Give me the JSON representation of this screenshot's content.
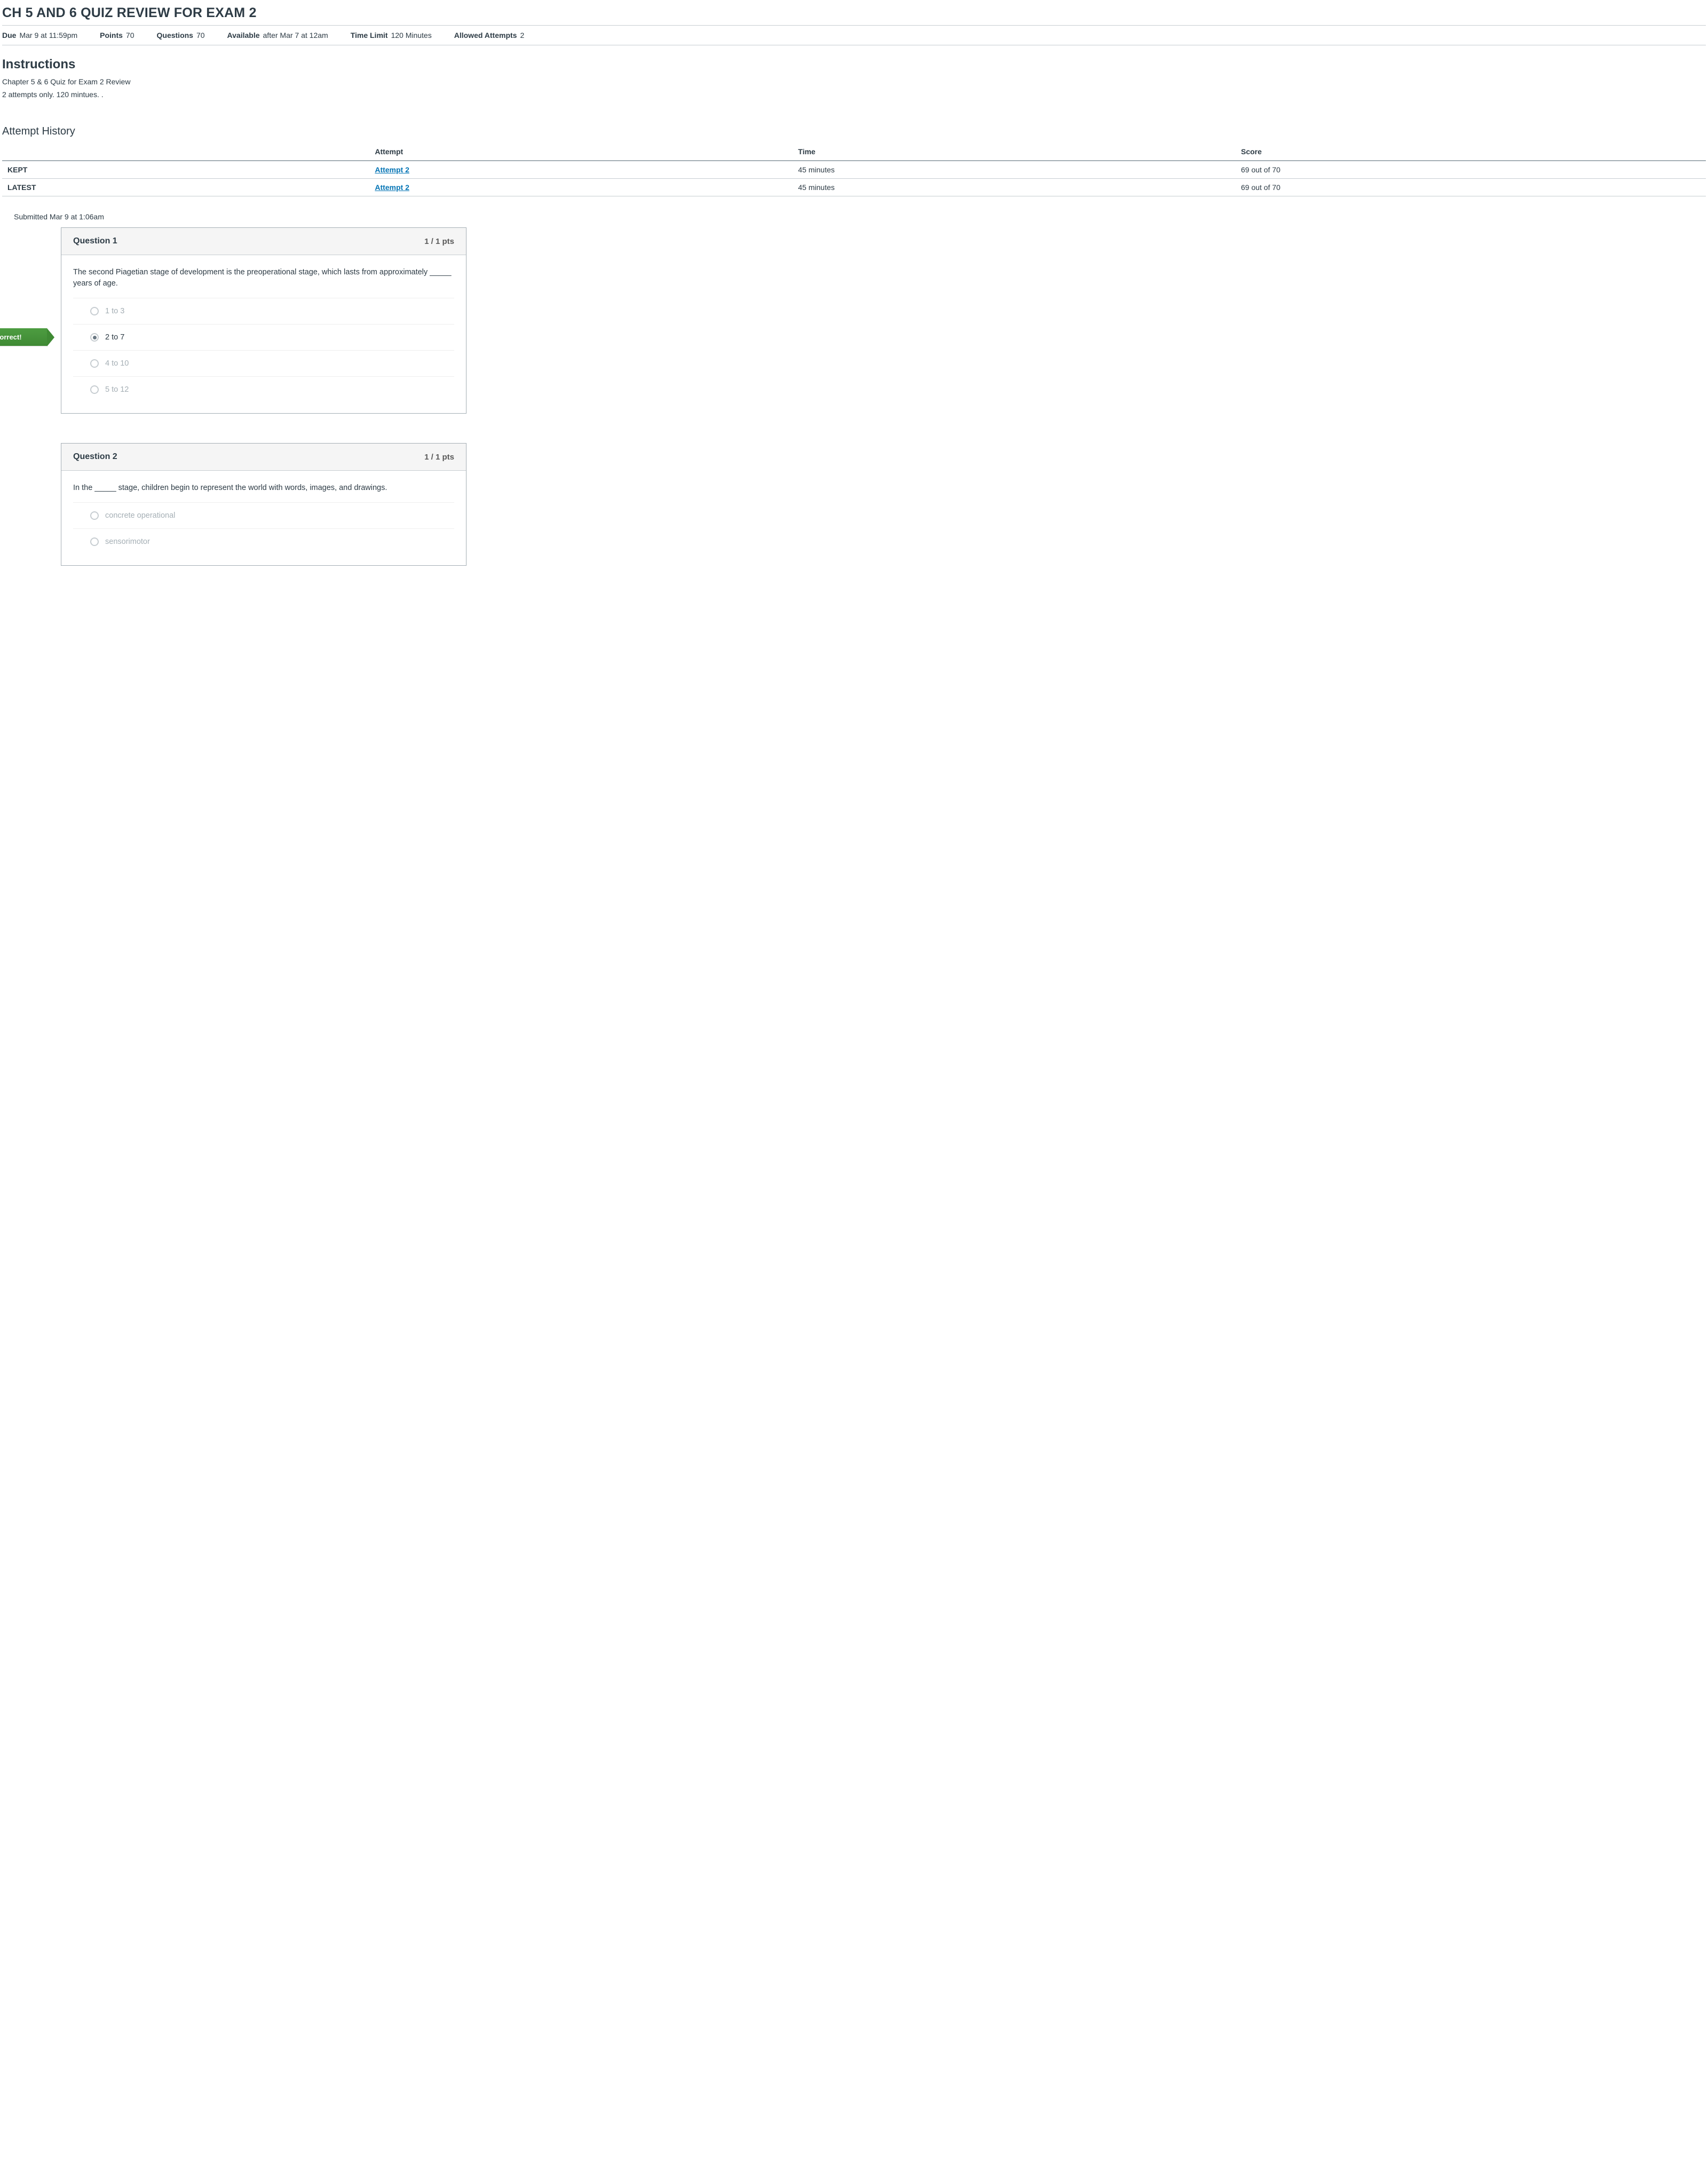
{
  "title": "CH 5 AND 6 QUIZ REVIEW FOR EXAM 2",
  "meta": [
    {
      "label": "Due",
      "value": "Mar 9 at 11:59pm"
    },
    {
      "label": "Points",
      "value": "70"
    },
    {
      "label": "Questions",
      "value": "70"
    },
    {
      "label": "Available",
      "value": "after Mar 7 at 12am"
    },
    {
      "label": "Time Limit",
      "value": "120 Minutes"
    },
    {
      "label": "Allowed Attempts",
      "value": "2"
    }
  ],
  "instructions": {
    "heading": "Instructions",
    "lines": [
      "Chapter 5 & 6 Quiz for Exam 2 Review",
      "2 attempts only.  120 mintues.  ."
    ]
  },
  "history": {
    "heading": "Attempt History",
    "columns": [
      "",
      "Attempt",
      "Time",
      "Score"
    ],
    "rows": [
      {
        "label": "KEPT",
        "attempt": "Attempt 2",
        "time": "45 minutes",
        "score": "69 out of 70"
      },
      {
        "label": "LATEST",
        "attempt": "Attempt 2",
        "time": "45 minutes",
        "score": "69 out of 70"
      }
    ]
  },
  "submitted": "Submitted Mar 9 at 1:06am",
  "flag_label": "Correct!",
  "flag_bg": "#4d9c41",
  "questions": [
    {
      "title": "Question 1",
      "pts": "1 / 1 pts",
      "text": "The second Piagetian stage of development is the preoperational stage, which lasts from approximately _____ years of age.",
      "answers": [
        {
          "text": "1 to 3",
          "selected": false,
          "flag": null
        },
        {
          "text": "2 to 7",
          "selected": true,
          "flag": "Correct!"
        },
        {
          "text": "4 to 10",
          "selected": false,
          "flag": null
        },
        {
          "text": "5 to 12",
          "selected": false,
          "flag": null
        }
      ]
    },
    {
      "title": "Question 2",
      "pts": "1 / 1 pts",
      "text": "In the _____ stage, children begin to represent the world with words, images, and drawings.",
      "answers": [
        {
          "text": "concrete operational",
          "selected": false,
          "flag": null
        },
        {
          "text": "sensorimotor",
          "selected": false,
          "flag": null
        }
      ]
    }
  ]
}
